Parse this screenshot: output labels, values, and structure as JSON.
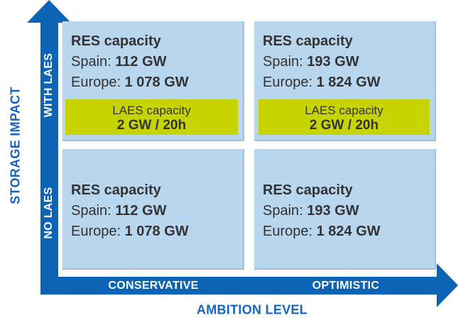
{
  "axes": {
    "y_title": "STORAGE IMPACT",
    "x_title": "AMBITION LEVEL",
    "y_levels": [
      "NO LAES",
      "WITH LAES"
    ],
    "x_levels": [
      "CONSERVATIVE",
      "OPTIMISTIC"
    ],
    "color": "#0b64b5"
  },
  "quadrants": {
    "with_laes_conservative": {
      "title": "RES capacity",
      "spain_label": "Spain: ",
      "spain_value": "112 GW",
      "europe_label": "Europe: ",
      "europe_value": "1 078 GW",
      "laes_label": "LAES capacity",
      "laes_value": "2 GW / 20h"
    },
    "with_laes_optimistic": {
      "title": "RES capacity",
      "spain_label": "Spain: ",
      "spain_value": "193 GW",
      "europe_label": "Europe: ",
      "europe_value": "1 824 GW",
      "laes_label": "LAES capacity",
      "laes_value": "2 GW / 20h"
    },
    "no_laes_conservative": {
      "title": "RES capacity",
      "spain_label": "Spain: ",
      "spain_value": "112 GW",
      "europe_label": "Europe: ",
      "europe_value": "1 078 GW"
    },
    "no_laes_optimistic": {
      "title": "RES capacity",
      "spain_label": "Spain: ",
      "spain_value": "193 GW",
      "europe_label": "Europe: ",
      "europe_value": "1 824 GW"
    }
  },
  "colors": {
    "cell_fill": "#b9d6ef",
    "laes_fill": "#c8d400",
    "axis_title": "#1565c0"
  }
}
